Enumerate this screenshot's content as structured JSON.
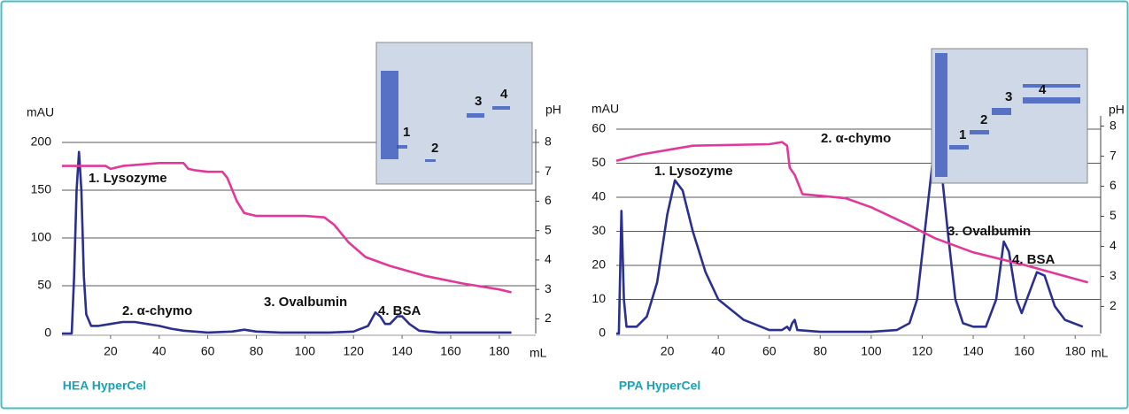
{
  "chart_data": [
    {
      "type": "line",
      "title": "HEA HyperCel",
      "ylabel": "mAU",
      "y2label": "pH",
      "xlabel": "mL",
      "xlim": [
        0,
        195
      ],
      "xticks": [
        20,
        40,
        60,
        80,
        100,
        120,
        140,
        160,
        180
      ],
      "ylim": [
        0,
        200
      ],
      "yticks": [
        0,
        50,
        100,
        150,
        200
      ],
      "y2lim": [
        1.5,
        8
      ],
      "y2ticks": [
        2,
        3,
        4,
        5,
        6,
        7,
        8
      ],
      "grid": true,
      "annotations": [
        "1. Lysozyme",
        "2. α-chymo",
        "3. Ovalbumin",
        "4. BSA"
      ],
      "inset_labels": [
        "1",
        "2",
        "3",
        "4"
      ],
      "series": [
        {
          "color": "#2b2f8f",
          "axis": "y",
          "x": [
            0,
            4,
            5,
            6,
            7,
            8,
            9,
            10,
            12,
            15,
            20,
            25,
            30,
            35,
            40,
            45,
            50,
            60,
            70,
            75,
            80,
            90,
            100,
            110,
            120,
            126,
            129,
            131,
            133,
            135,
            138,
            140,
            143,
            147,
            155,
            170,
            185
          ],
          "values": [
            0,
            0,
            60,
            150,
            190,
            150,
            60,
            20,
            8,
            8,
            10,
            12,
            12,
            10,
            8,
            5,
            3,
            1,
            2,
            4,
            2,
            1,
            1,
            1,
            2,
            8,
            22,
            18,
            10,
            10,
            18,
            18,
            10,
            3,
            1,
            1,
            1
          ]
        },
        {
          "color": "#e0399a",
          "axis": "y2",
          "x": [
            0,
            10,
            18,
            20,
            25,
            40,
            50,
            52,
            55,
            60,
            66,
            68,
            72,
            75,
            80,
            100,
            108,
            112,
            118,
            125,
            135,
            150,
            165,
            180,
            185
          ],
          "values": [
            7.2,
            7.2,
            7.2,
            7.1,
            7.2,
            7.3,
            7.3,
            7.1,
            7.05,
            7.0,
            7.0,
            6.8,
            6.0,
            5.6,
            5.5,
            5.5,
            5.45,
            5.2,
            4.6,
            4.1,
            3.8,
            3.45,
            3.2,
            3.0,
            2.9
          ]
        }
      ]
    },
    {
      "type": "line",
      "title": "PPA HyperCel",
      "ylabel": "mAU",
      "y2label": "pH",
      "xlabel": "mL",
      "xlim": [
        0,
        190
      ],
      "xticks": [
        20,
        40,
        60,
        80,
        100,
        120,
        140,
        160,
        180
      ],
      "ylim": [
        0,
        60
      ],
      "yticks": [
        0,
        10,
        20,
        30,
        40,
        50,
        60
      ],
      "y2lim": [
        1.1,
        7.9
      ],
      "y2ticks": [
        2,
        3,
        4,
        5,
        6,
        7,
        8
      ],
      "grid": true,
      "annotations": [
        "1. Lysozyme",
        "2. α-chymo",
        "3. Ovalbumin",
        "4. BSA"
      ],
      "inset_labels": [
        "1",
        "2",
        "3",
        "4"
      ],
      "series": [
        {
          "color": "#2b2f8f",
          "axis": "y",
          "x": [
            0,
            1,
            2,
            3,
            4,
            8,
            12,
            16,
            20,
            23,
            26,
            30,
            35,
            40,
            50,
            60,
            65,
            67,
            68,
            69,
            70,
            71,
            80,
            100,
            110,
            115,
            118,
            121,
            124,
            125,
            127,
            130,
            133,
            136,
            140,
            145,
            149,
            152,
            154,
            157,
            159,
            162,
            165,
            168,
            172,
            176,
            183
          ],
          "values": [
            0,
            0,
            36,
            10,
            2,
            2,
            5,
            15,
            35,
            45,
            42,
            30,
            18,
            10,
            4,
            1,
            1,
            2,
            1,
            3,
            4,
            1,
            0.5,
            0.5,
            1,
            3,
            10,
            30,
            50,
            55,
            52,
            30,
            10,
            3,
            2,
            2,
            10,
            27,
            24,
            10,
            6,
            12,
            18,
            17,
            8,
            4,
            2
          ]
        },
        {
          "color": "#e0399a",
          "axis": "y2",
          "x": [
            0,
            10,
            30,
            60,
            65,
            67,
            68,
            70,
            73,
            90,
            100,
            115,
            125,
            140,
            160,
            185
          ],
          "values": [
            6.85,
            7.06,
            7.35,
            7.4,
            7.47,
            7.35,
            6.62,
            6.38,
            5.74,
            5.6,
            5.3,
            4.7,
            4.27,
            3.8,
            3.38,
            2.8
          ]
        }
      ]
    }
  ]
}
